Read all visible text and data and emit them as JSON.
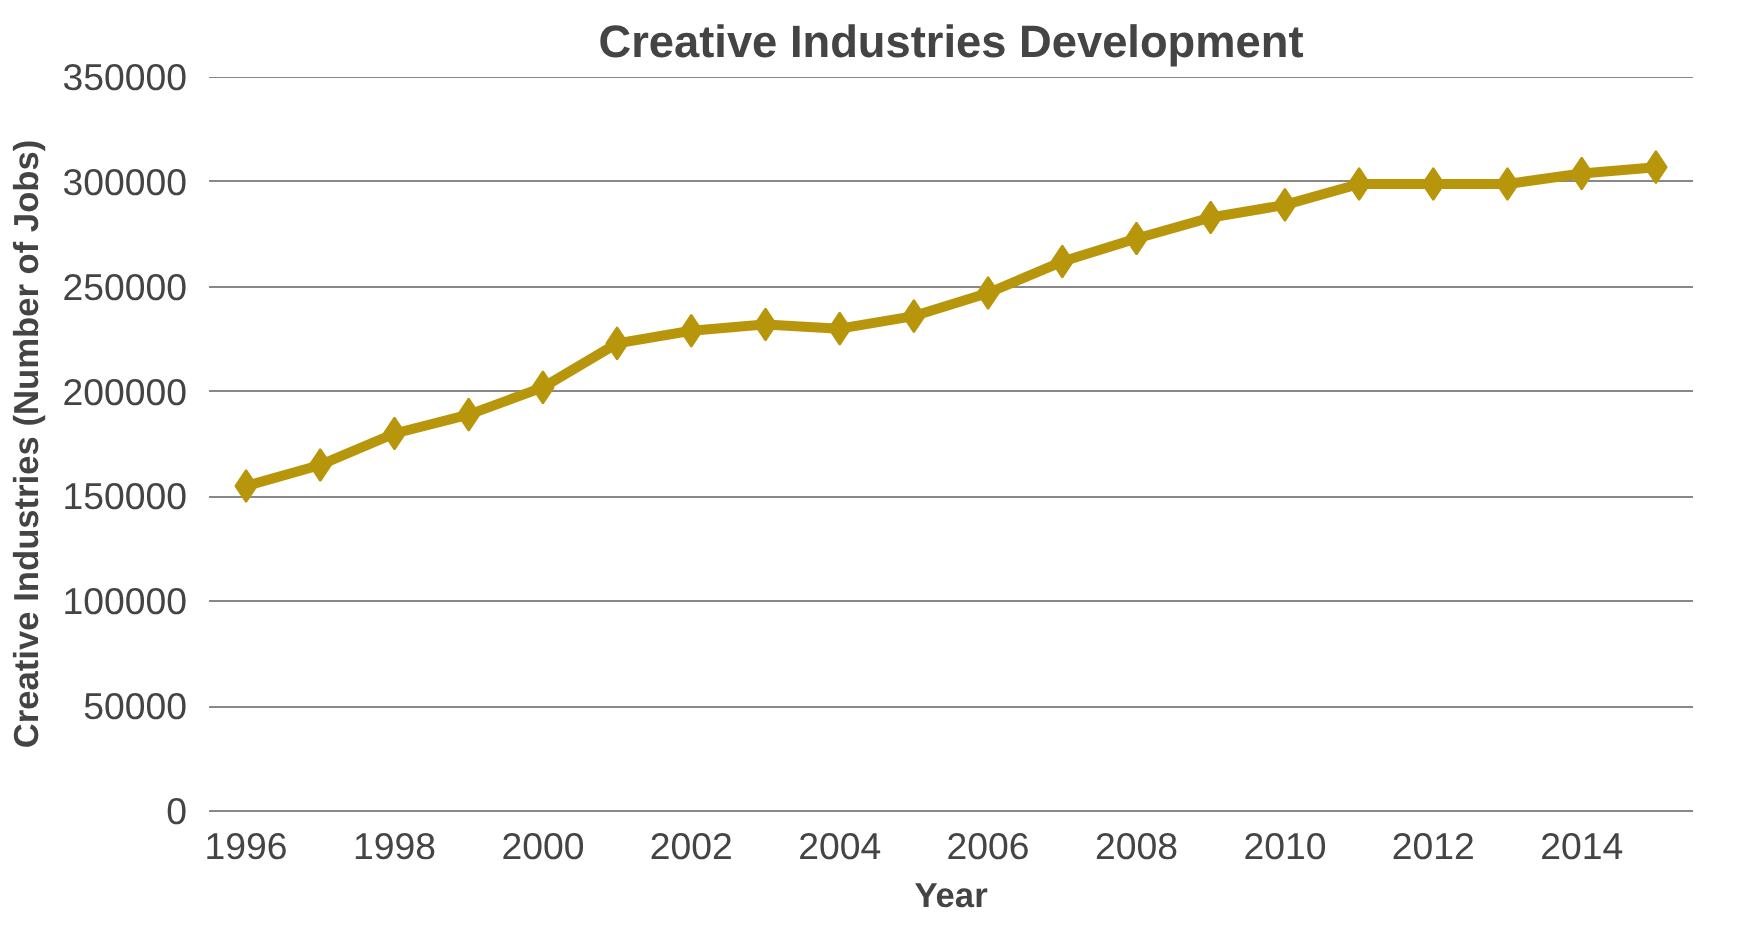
{
  "chart_data": {
    "type": "line",
    "title": "Creative Industries Development",
    "xlabel": "Year",
    "ylabel": "Creative Industries (Number of Jobs)",
    "categories": [
      "1996",
      null,
      "1998",
      null,
      "2000",
      null,
      "2002",
      null,
      "2004",
      null,
      "2006",
      null,
      "2008",
      null,
      "2010",
      null,
      "2012",
      null,
      "2014",
      null
    ],
    "series": [
      {
        "color": "#b8960c",
        "values": [
          155000,
          165000,
          180000,
          189000,
          202000,
          223000,
          229000,
          232000,
          230000,
          236000,
          247000,
          262000,
          273000,
          283000,
          289000,
          299000,
          299000,
          299000,
          304000,
          307000
        ]
      }
    ],
    "ylim": [
      0,
      350000
    ],
    "yticks": [
      0,
      50000,
      100000,
      150000,
      200000,
      250000,
      300000,
      350000
    ],
    "grid": "y",
    "marker": "diamond",
    "line_style": "solid"
  }
}
